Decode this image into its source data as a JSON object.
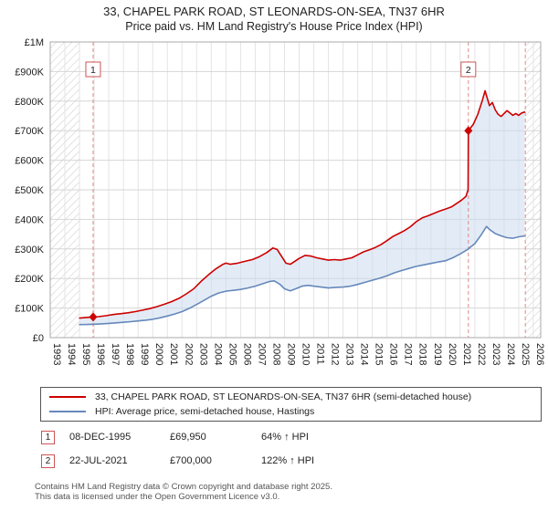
{
  "title": "33, CHAPEL PARK ROAD, ST LEONARDS-ON-SEA, TN37 6HR",
  "subtitle": "Price paid vs. HM Land Registry's House Price Index (HPI)",
  "chart_data": {
    "type": "line",
    "title": "33, CHAPEL PARK ROAD, ST LEONARDS-ON-SEA, TN37 6HR",
    "subtitle": "Price paid vs. HM Land Registry's House Price Index (HPI)",
    "xlim": [
      1993,
      2026.5
    ],
    "ylim": [
      0,
      1000000
    ],
    "data_range": [
      1995.0,
      2025.45
    ],
    "x_ticks": [
      1993,
      1994,
      1995,
      1996,
      1997,
      1998,
      1999,
      2000,
      2001,
      2002,
      2003,
      2004,
      2005,
      2006,
      2007,
      2008,
      2009,
      2010,
      2011,
      2012,
      2013,
      2014,
      2015,
      2016,
      2017,
      2018,
      2019,
      2020,
      2021,
      2022,
      2023,
      2024,
      2025,
      2026
    ],
    "y_ticks": [
      {
        "v": 0,
        "label": "£0"
      },
      {
        "v": 100000,
        "label": "£100K"
      },
      {
        "v": 200000,
        "label": "£200K"
      },
      {
        "v": 300000,
        "label": "£300K"
      },
      {
        "v": 400000,
        "label": "£400K"
      },
      {
        "v": 500000,
        "label": "£500K"
      },
      {
        "v": 600000,
        "label": "£600K"
      },
      {
        "v": 700000,
        "label": "£700K"
      },
      {
        "v": 800000,
        "label": "£800K"
      },
      {
        "v": 900000,
        "label": "£900K"
      },
      {
        "v": 1000000,
        "label": "£1M"
      }
    ],
    "colors": {
      "red": "#cc0000",
      "blue": "#6688bb",
      "grid_v": "#e4e4e4",
      "grid_h": "#d6d6d6",
      "hatch": "#c8c8c8",
      "fill": "#ccdcee",
      "event_line": "#e08888",
      "border": "#aaaaaa"
    },
    "series": [
      {
        "name": "33, CHAPEL PARK ROAD, ST LEONARDS-ON-SEA, TN37 6HR (semi-detached house)",
        "color": "#cc0000",
        "points": [
          [
            1995.0,
            66000
          ],
          [
            1995.93,
            69950
          ],
          [
            1996.3,
            71000
          ],
          [
            1996.8,
            74000
          ],
          [
            1997.3,
            78000
          ],
          [
            1997.8,
            81000
          ],
          [
            1998.3,
            84000
          ],
          [
            1998.8,
            88000
          ],
          [
            1999.3,
            93000
          ],
          [
            1999.8,
            98000
          ],
          [
            2000.3,
            105000
          ],
          [
            2000.8,
            113000
          ],
          [
            2001.3,
            122000
          ],
          [
            2001.8,
            133000
          ],
          [
            2002.3,
            148000
          ],
          [
            2002.8,
            165000
          ],
          [
            2003.3,
            190000
          ],
          [
            2003.8,
            212000
          ],
          [
            2004.3,
            232000
          ],
          [
            2004.8,
            248000
          ],
          [
            2005.0,
            252000
          ],
          [
            2005.3,
            248000
          ],
          [
            2005.8,
            252000
          ],
          [
            2006.3,
            258000
          ],
          [
            2006.8,
            264000
          ],
          [
            2007.3,
            274000
          ],
          [
            2007.8,
            288000
          ],
          [
            2008.2,
            303000
          ],
          [
            2008.5,
            298000
          ],
          [
            2008.8,
            275000
          ],
          [
            2009.1,
            252000
          ],
          [
            2009.4,
            248000
          ],
          [
            2009.7,
            258000
          ],
          [
            2010.0,
            268000
          ],
          [
            2010.4,
            278000
          ],
          [
            2010.8,
            276000
          ],
          [
            2011.2,
            270000
          ],
          [
            2011.6,
            266000
          ],
          [
            2012.0,
            262000
          ],
          [
            2012.4,
            264000
          ],
          [
            2012.8,
            262000
          ],
          [
            2013.2,
            266000
          ],
          [
            2013.6,
            270000
          ],
          [
            2014.0,
            280000
          ],
          [
            2014.4,
            290000
          ],
          [
            2014.8,
            297000
          ],
          [
            2015.2,
            305000
          ],
          [
            2015.6,
            315000
          ],
          [
            2016.0,
            328000
          ],
          [
            2016.4,
            342000
          ],
          [
            2016.8,
            352000
          ],
          [
            2017.2,
            362000
          ],
          [
            2017.6,
            375000
          ],
          [
            2018.0,
            392000
          ],
          [
            2018.4,
            405000
          ],
          [
            2018.8,
            412000
          ],
          [
            2019.2,
            420000
          ],
          [
            2019.6,
            428000
          ],
          [
            2020.0,
            435000
          ],
          [
            2020.4,
            442000
          ],
          [
            2020.8,
            455000
          ],
          [
            2021.1,
            465000
          ],
          [
            2021.4,
            478000
          ],
          [
            2021.54,
            500000
          ],
          [
            2021.56,
            700000
          ],
          [
            2021.9,
            722000
          ],
          [
            2022.2,
            755000
          ],
          [
            2022.5,
            800000
          ],
          [
            2022.7,
            835000
          ],
          [
            2022.85,
            810000
          ],
          [
            2023.0,
            785000
          ],
          [
            2023.2,
            795000
          ],
          [
            2023.4,
            770000
          ],
          [
            2023.6,
            755000
          ],
          [
            2023.8,
            748000
          ],
          [
            2024.0,
            758000
          ],
          [
            2024.2,
            768000
          ],
          [
            2024.4,
            760000
          ],
          [
            2024.6,
            752000
          ],
          [
            2024.8,
            758000
          ],
          [
            2025.0,
            752000
          ],
          [
            2025.2,
            760000
          ],
          [
            2025.4,
            763000
          ]
        ]
      },
      {
        "name": "HPI: Average price, semi-detached house, Hastings",
        "color": "#6688bb",
        "points": [
          [
            1995.0,
            44000
          ],
          [
            1995.5,
            44500
          ],
          [
            1996.0,
            45500
          ],
          [
            1996.5,
            46500
          ],
          [
            1997.0,
            48000
          ],
          [
            1997.5,
            50000
          ],
          [
            1998.0,
            52000
          ],
          [
            1998.5,
            54000
          ],
          [
            1999.0,
            56500
          ],
          [
            1999.5,
            59000
          ],
          [
            2000.0,
            62000
          ],
          [
            2000.5,
            67000
          ],
          [
            2001.0,
            73000
          ],
          [
            2001.5,
            80000
          ],
          [
            2002.0,
            88000
          ],
          [
            2002.5,
            99000
          ],
          [
            2003.0,
            112000
          ],
          [
            2003.5,
            126000
          ],
          [
            2004.0,
            140000
          ],
          [
            2004.5,
            151000
          ],
          [
            2005.0,
            157000
          ],
          [
            2005.5,
            160000
          ],
          [
            2006.0,
            163000
          ],
          [
            2006.5,
            168000
          ],
          [
            2007.0,
            174000
          ],
          [
            2007.5,
            182000
          ],
          [
            2008.0,
            190000
          ],
          [
            2008.3,
            192000
          ],
          [
            2008.7,
            180000
          ],
          [
            2009.0,
            165000
          ],
          [
            2009.4,
            158000
          ],
          [
            2009.8,
            166000
          ],
          [
            2010.2,
            174000
          ],
          [
            2010.6,
            177000
          ],
          [
            2011.0,
            174000
          ],
          [
            2011.5,
            171000
          ],
          [
            2012.0,
            168000
          ],
          [
            2012.5,
            170000
          ],
          [
            2013.0,
            171000
          ],
          [
            2013.5,
            174000
          ],
          [
            2014.0,
            180000
          ],
          [
            2014.5,
            187000
          ],
          [
            2015.0,
            194000
          ],
          [
            2015.5,
            201000
          ],
          [
            2016.0,
            209000
          ],
          [
            2016.5,
            219000
          ],
          [
            2017.0,
            227000
          ],
          [
            2017.5,
            234000
          ],
          [
            2018.0,
            241000
          ],
          [
            2018.5,
            246000
          ],
          [
            2019.0,
            251000
          ],
          [
            2019.5,
            256000
          ],
          [
            2020.0,
            260000
          ],
          [
            2020.5,
            270000
          ],
          [
            2021.0,
            283000
          ],
          [
            2021.5,
            298000
          ],
          [
            2022.0,
            318000
          ],
          [
            2022.4,
            345000
          ],
          [
            2022.8,
            376000
          ],
          [
            2023.0,
            366000
          ],
          [
            2023.4,
            352000
          ],
          [
            2023.8,
            344000
          ],
          [
            2024.2,
            338000
          ],
          [
            2024.6,
            336000
          ],
          [
            2025.0,
            341000
          ],
          [
            2025.4,
            344000
          ]
        ]
      }
    ],
    "markers": [
      {
        "n": "1",
        "x": 1995.93,
        "y": 69950
      },
      {
        "n": "2",
        "x": 2021.56,
        "y": 700000
      }
    ]
  },
  "legend": {
    "items": [
      {
        "label": "33, CHAPEL PARK ROAD, ST LEONARDS-ON-SEA, TN37 6HR (semi-detached house)",
        "color": "#cc0000"
      },
      {
        "label": "HPI: Average price, semi-detached house, Hastings",
        "color": "#6688bb"
      }
    ]
  },
  "events": [
    {
      "n": "1",
      "date": "08-DEC-1995",
      "price": "£69,950",
      "hpi": "64% ↑ HPI"
    },
    {
      "n": "2",
      "date": "22-JUL-2021",
      "price": "£700,000",
      "hpi": "122% ↑ HPI"
    }
  ],
  "footer": {
    "line1": "Contains HM Land Registry data © Crown copyright and database right 2025.",
    "line2": "This data is licensed under the Open Government Licence v3.0."
  }
}
